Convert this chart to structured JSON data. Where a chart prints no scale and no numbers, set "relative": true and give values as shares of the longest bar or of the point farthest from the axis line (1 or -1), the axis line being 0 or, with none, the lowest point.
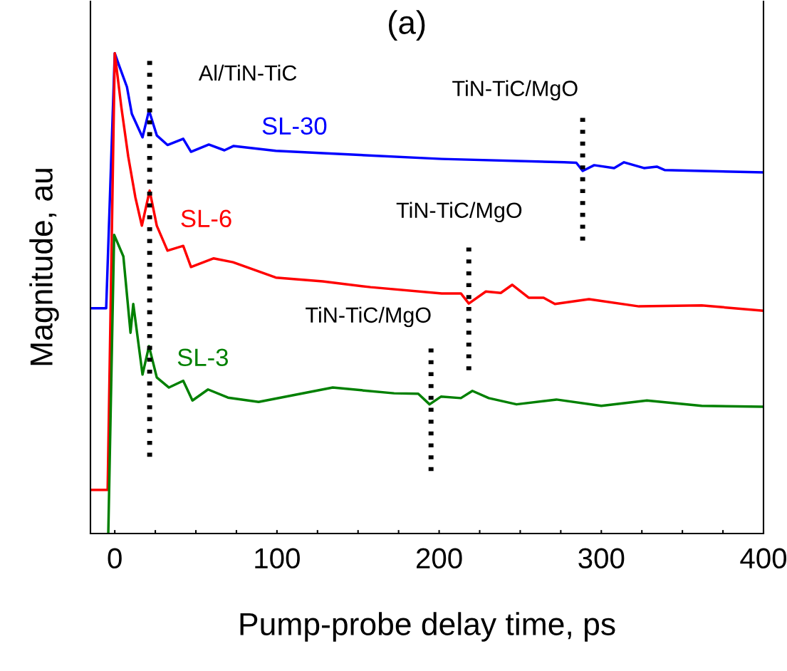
{
  "chart_data": {
    "type": "line",
    "title": "(a)",
    "xlabel": "Pump-probe delay time, ps",
    "ylabel": "Magnitude, au",
    "relative": true,
    "tick_labels": "x",
    "grid": false,
    "legend": false,
    "marker": "none",
    "line_style": "solid",
    "xlim": [
      -15,
      400
    ],
    "xticks": [
      0,
      {
        "value": 25,
        "label": null
      },
      {
        "value": 50,
        "label": null
      },
      {
        "value": 75,
        "label": null
      },
      100,
      {
        "value": 125,
        "label": null
      },
      {
        "value": 150,
        "label": null
      },
      {
        "value": 175,
        "label": null
      },
      200,
      {
        "value": 225,
        "label": null
      },
      {
        "value": 250,
        "label": null
      },
      {
        "value": 275,
        "label": null
      },
      300,
      {
        "value": 325,
        "label": null
      },
      {
        "value": 350,
        "label": null
      },
      {
        "value": 375,
        "label": null
      },
      400
    ],
    "series": [
      {
        "name": "SL-30",
        "color": "#0000ff",
        "x": [
          -15,
          -5.3,
          0,
          2.6,
          7.5,
          10.5,
          17.1,
          21.1,
          25.9,
          32.5,
          42.2,
          47.0,
          58.0,
          67.6,
          73.3,
          99.3,
          128.2,
          201.6,
          277.1,
          284.6,
          288.5,
          295.6,
          307.9,
          314.0,
          326.3,
          334.2,
          339.0,
          400
        ],
        "values": [
          0.469,
          0.469,
          1.0,
          0.975,
          0.93,
          0.874,
          0.825,
          0.881,
          0.829,
          0.809,
          0.822,
          0.795,
          0.81,
          0.798,
          0.807,
          0.797,
          0.792,
          0.78,
          0.773,
          0.772,
          0.755,
          0.767,
          0.761,
          0.773,
          0.761,
          0.764,
          0.757,
          0.752
        ]
      },
      {
        "name": "SL-6",
        "color": "#ff0000",
        "x": [
          -15,
          -4.4,
          0,
          4.0,
          8.3,
          12.7,
          16.7,
          21.5,
          25.9,
          32.5,
          42.2,
          47.0,
          61.0,
          72.9,
          99.3,
          128.2,
          157.7,
          201.6,
          213.4,
          218.3,
          228.8,
          238.0,
          245.1,
          255.2,
          264.4,
          271.4,
          292.4,
          323.2,
          361.9,
          400
        ],
        "values": [
          0.091,
          0.091,
          1.0,
          0.889,
          0.785,
          0.7,
          0.641,
          0.714,
          0.641,
          0.589,
          0.599,
          0.555,
          0.573,
          0.565,
          0.533,
          0.525,
          0.513,
          0.5,
          0.5,
          0.479,
          0.504,
          0.501,
          0.518,
          0.491,
          0.491,
          0.478,
          0.488,
          0.473,
          0.475,
          0.464
        ]
      },
      {
        "name": "SL-3",
        "color": "#008000",
        "x": [
          -4.0,
          -0.4,
          5.3,
          9.7,
          11.4,
          17.1,
          21.1,
          25.9,
          33.4,
          42.2,
          47.9,
          57.5,
          69.8,
          88.7,
          134.4,
          172.2,
          187.1,
          194.1,
          201.1,
          213.4,
          220.5,
          230.6,
          247.7,
          272.3,
          300.0,
          328.1,
          361.9,
          400
        ],
        "values": [
          0,
          0.622,
          0.577,
          0.418,
          0.478,
          0.331,
          0.39,
          0.325,
          0.304,
          0.318,
          0.277,
          0.3,
          0.283,
          0.274,
          0.304,
          0.292,
          0.291,
          0.269,
          0.285,
          0.282,
          0.297,
          0.282,
          0.269,
          0.279,
          0.266,
          0.277,
          0.266,
          0.264
        ]
      },
      {
        "type": "line",
        "line_style": "dotted",
        "color": "#000000",
        "x": [
          21.5,
          21.5
        ],
        "values": [
          0.16,
          0.99
        ]
      },
      {
        "type": "line",
        "line_style": "dotted",
        "color": "#000000",
        "x": [
          195.0,
          195.0
        ],
        "values": [
          0.13,
          0.39
        ]
      },
      {
        "type": "line",
        "line_style": "dotted",
        "color": "#000000",
        "x": [
          218.3,
          218.3
        ],
        "values": [
          0.34,
          0.6
        ]
      },
      {
        "type": "line",
        "line_style": "dotted",
        "color": "#000000",
        "x": [
          288.5,
          288.5
        ],
        "values": [
          0.61,
          0.87
        ]
      }
    ],
    "annotations": [
      "Al/TiN-TiC",
      "TiN-TiC/MgO",
      "TiN-TiC/MgO",
      "TiN-TiC/MgO"
    ]
  }
}
